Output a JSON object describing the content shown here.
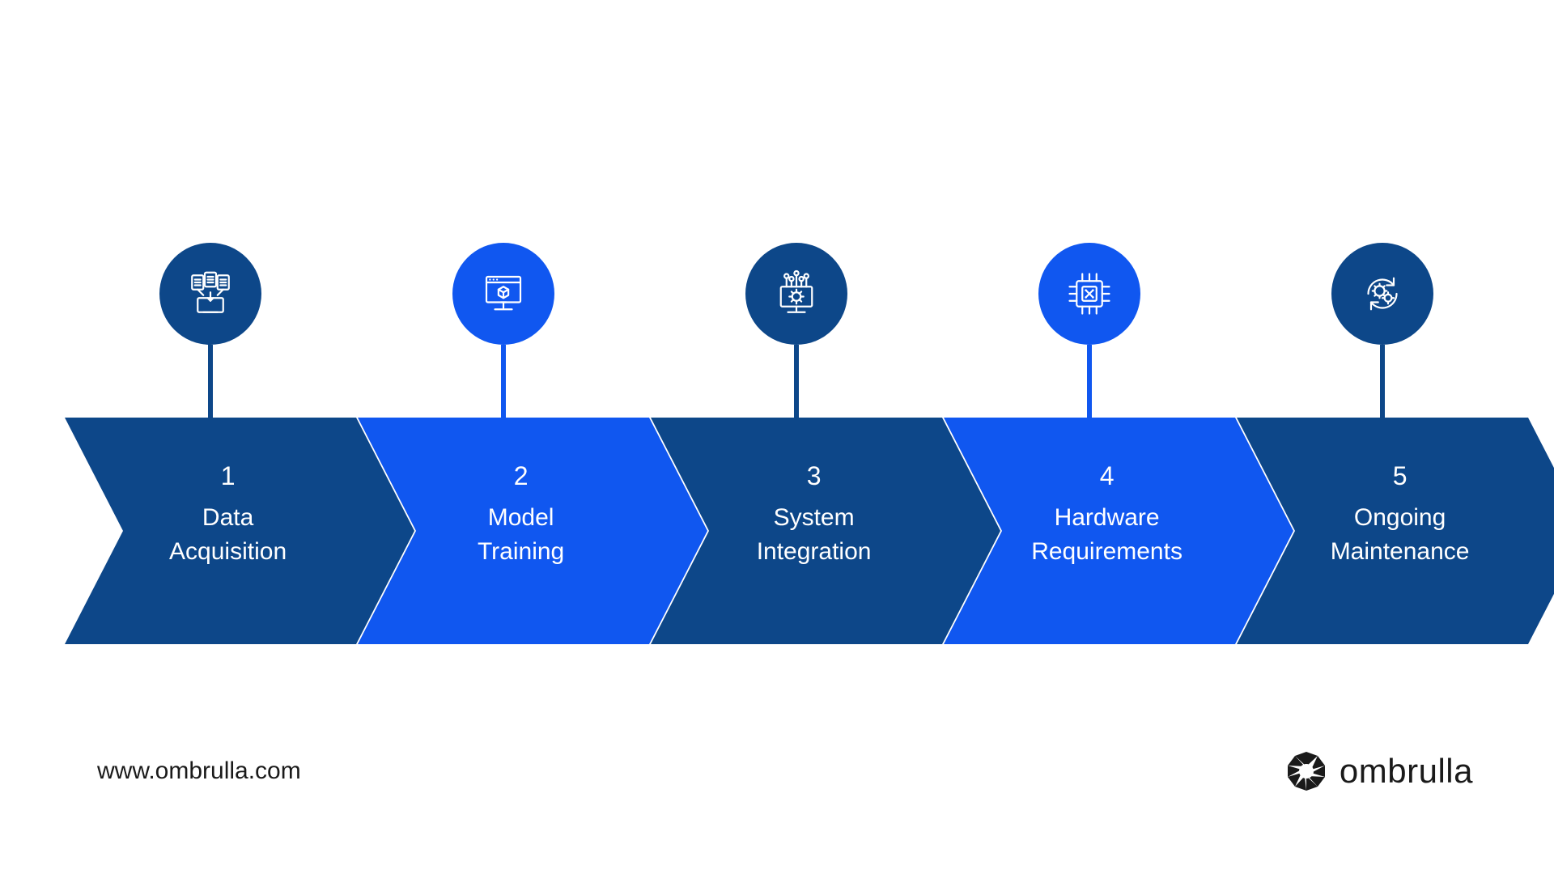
{
  "diagram": {
    "type": "chevron-process",
    "background": "#ffffff",
    "step_width": 360,
    "step_gap": 2,
    "chevron_height": 280,
    "notch_depth": 72,
    "circle_diameter": 126,
    "connector_height": 90,
    "connector_width": 6,
    "label_color": "#ffffff",
    "num_fontsize": 32,
    "text_fontsize": 30,
    "colors": {
      "dark": "#0d4789",
      "bright": "#1057f0"
    },
    "steps": [
      {
        "num": "1",
        "text": "Data\nAcquisition",
        "color": "dark",
        "icon": "data-acquisition-icon"
      },
      {
        "num": "2",
        "text": "Model\nTraining",
        "color": "bright",
        "icon": "model-training-icon"
      },
      {
        "num": "3",
        "text": "System\nIntegration",
        "color": "dark",
        "icon": "system-integration-icon"
      },
      {
        "num": "4",
        "text": "Hardware\nRequirements",
        "color": "bright",
        "icon": "hardware-requirements-icon"
      },
      {
        "num": "5",
        "text": "Ongoing\nMaintenance",
        "color": "dark",
        "icon": "ongoing-maintenance-icon"
      }
    ]
  },
  "footer": {
    "url": "www.ombrulla.com",
    "brand": "ombrulla"
  }
}
